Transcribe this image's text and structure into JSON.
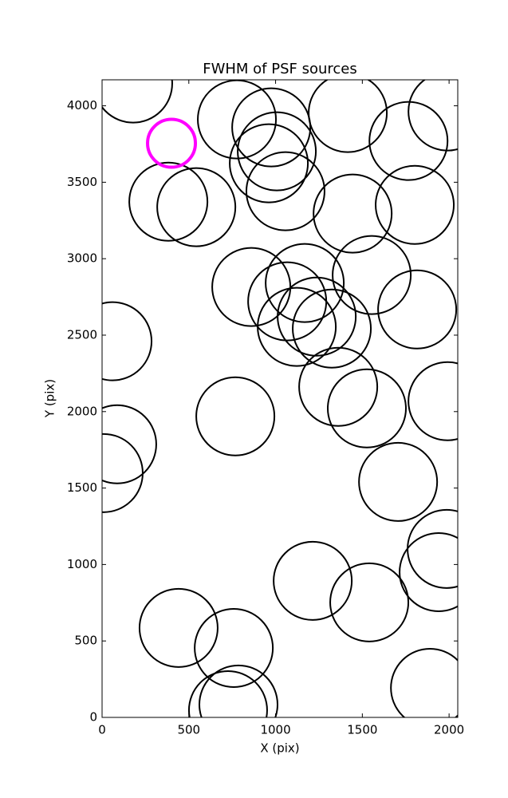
{
  "chart_data": {
    "type": "scatter",
    "title": "FWHM of PSF sources",
    "x_label": "X (pix)",
    "y_label": "Y (pix)",
    "xlim": [
      0,
      2050
    ],
    "ylim": [
      0,
      4170
    ],
    "xticks": [
      0,
      500,
      1000,
      1500,
      2000
    ],
    "yticks": [
      0,
      500,
      1000,
      1500,
      2000,
      2500,
      3000,
      3500,
      4000
    ],
    "marker": "open-circle",
    "series": [
      {
        "color": "#000000",
        "x": [
          179,
          777,
          975,
          1416,
          1991,
          1766,
          1007,
          961,
          1057,
          1444,
          1802,
          382,
          543,
          860,
          1168,
          1554,
          1067,
          1816,
          1122,
          1237,
          1324,
          60,
          1361,
          1526,
          1991,
          768,
          87,
          9,
          1706,
          1986,
          1940,
          1214,
          1540,
          441,
          759,
          786,
          726,
          1890
        ],
        "y": [
          4146,
          3911,
          3859,
          3953,
          3963,
          3770,
          3702,
          3624,
          3441,
          3295,
          3352,
          3373,
          3337,
          2815,
          2841,
          2893,
          2721,
          2668,
          2554,
          2621,
          2543,
          2460,
          2162,
          2021,
          2068,
          1969,
          1786,
          1598,
          1540,
          1102,
          950,
          893,
          752,
          585,
          454,
          84,
          47,
          193
        ]
      },
      {
        "color": "#ff00ff",
        "x": [
          400
        ],
        "y": [
          3755
        ]
      }
    ]
  }
}
